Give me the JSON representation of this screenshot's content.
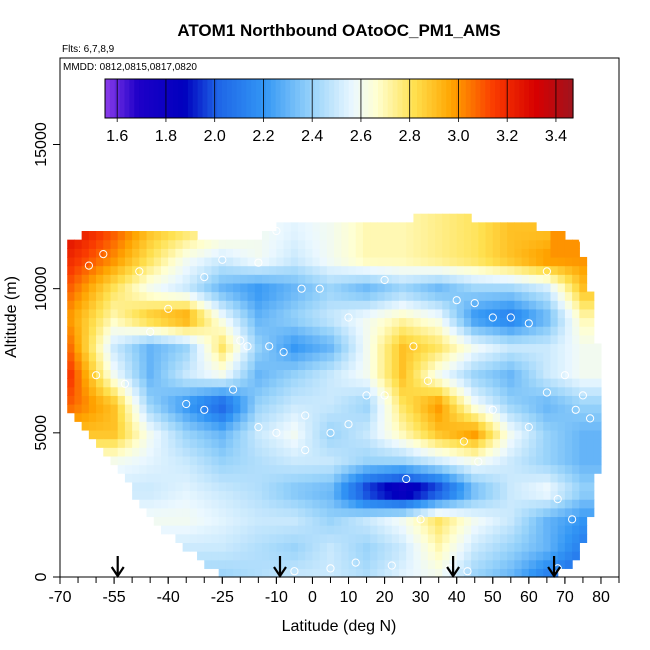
{
  "chart_data": {
    "type": "heatmap",
    "title": "ATOM1 Northbound OAtoOC_PM1_AMS",
    "subtitle": "Flts: 6,7,8,9",
    "annotation": "MMDD: 0812,0815,0817,0820",
    "xlabel": "Latitude (deg N)",
    "ylabel": "Altitude (m)",
    "xlim": [
      -70,
      85
    ],
    "ylim": [
      0,
      18000
    ],
    "x_ticks": [
      -70,
      -55,
      -40,
      -25,
      -10,
      0,
      10,
      20,
      30,
      40,
      50,
      60,
      70,
      80
    ],
    "x_tick_labels": [
      "-70",
      "-55",
      "-40",
      "-25",
      "-10",
      "0",
      "10",
      "20",
      "30",
      "40",
      "50",
      "60",
      "70",
      "80"
    ],
    "y_ticks": [
      0,
      5000,
      10000,
      15000
    ],
    "y_tick_labels": [
      "0",
      "5000",
      "10000",
      "15000"
    ],
    "colorbar": {
      "min": 1.55,
      "max": 3.47,
      "ticks": [
        1.6,
        1.8,
        2.0,
        2.2,
        2.4,
        2.6,
        2.8,
        3.0,
        3.2,
        3.4
      ],
      "tick_labels": [
        "1.6",
        "1.8",
        "2.0",
        "2.2",
        "2.4",
        "2.6",
        "2.8",
        "3.0",
        "3.2",
        "3.4"
      ],
      "placement": "top"
    },
    "value_field": {
      "lat": [
        -68,
        -55,
        -45,
        -35,
        -25,
        -15,
        -5,
        5,
        15,
        25,
        35,
        45,
        55,
        65,
        75
      ],
      "alt": [
        0,
        1000,
        2000,
        3000,
        4000,
        5000,
        6000,
        7000,
        8000,
        9000,
        10000,
        11000,
        12000
      ],
      "values": [
        [
          null,
          null,
          null,
          null,
          2.4,
          2.45,
          2.5,
          2.5,
          2.45,
          2.55,
          2.6,
          2.4,
          2.3,
          2.1,
          2.0
        ],
        [
          null,
          null,
          null,
          2.5,
          2.5,
          2.45,
          2.4,
          2.5,
          2.4,
          2.5,
          2.7,
          2.5,
          2.4,
          2.3,
          2.1
        ],
        [
          null,
          null,
          2.6,
          2.6,
          2.55,
          2.5,
          2.5,
          2.4,
          2.5,
          2.6,
          2.8,
          2.6,
          2.5,
          2.3,
          2.2
        ],
        [
          null,
          null,
          2.5,
          2.55,
          2.5,
          2.45,
          2.35,
          2.3,
          1.9,
          1.7,
          1.9,
          2.3,
          2.5,
          2.6,
          2.4
        ],
        [
          null,
          2.6,
          2.55,
          2.5,
          2.4,
          2.45,
          2.5,
          2.5,
          2.4,
          2.4,
          2.5,
          2.6,
          2.5,
          2.4,
          2.3
        ],
        [
          null,
          2.9,
          2.6,
          2.4,
          2.3,
          2.5,
          2.6,
          2.4,
          2.5,
          2.7,
          2.9,
          3.0,
          2.6,
          2.4,
          2.3
        ],
        [
          3.1,
          2.9,
          2.4,
          2.2,
          2.0,
          2.4,
          2.5,
          2.5,
          2.4,
          2.8,
          3.0,
          2.6,
          2.4,
          2.3,
          2.4
        ],
        [
          3.2,
          2.6,
          2.3,
          2.5,
          2.6,
          2.3,
          2.4,
          2.5,
          2.6,
          2.9,
          2.6,
          2.4,
          2.3,
          2.5,
          2.6
        ],
        [
          3.1,
          2.5,
          2.3,
          2.4,
          2.8,
          2.4,
          2.2,
          2.3,
          2.6,
          2.9,
          2.8,
          2.6,
          2.5,
          2.5,
          2.6
        ],
        [
          3.0,
          2.7,
          2.9,
          3.0,
          2.6,
          2.3,
          2.4,
          2.5,
          2.6,
          2.7,
          2.6,
          2.2,
          2.1,
          2.3,
          2.7
        ],
        [
          3.1,
          2.8,
          2.6,
          2.5,
          2.3,
          2.2,
          2.3,
          2.4,
          2.3,
          2.4,
          2.3,
          2.4,
          2.4,
          2.5,
          2.9
        ],
        [
          3.2,
          3.0,
          2.8,
          2.6,
          2.5,
          2.6,
          2.5,
          2.6,
          2.7,
          2.7,
          2.75,
          2.8,
          2.9,
          3.0,
          3.0
        ],
        [
          3.3,
          3.1,
          2.9,
          2.8,
          2.7,
          2.6,
          2.55,
          2.6,
          2.7,
          2.7,
          2.75,
          2.8,
          2.9,
          null,
          null
        ]
      ]
    },
    "data_extent": [
      {
        "lat": -68,
        "alt_min": 6000,
        "alt_max": 11500
      },
      {
        "lat": -62,
        "alt_min": 5000,
        "alt_max": 12000
      },
      {
        "lat": -55,
        "alt_min": 4000,
        "alt_max": 12000
      },
      {
        "lat": -45,
        "alt_min": 2000,
        "alt_max": 12000
      },
      {
        "lat": -35,
        "alt_min": 1000,
        "alt_max": 12000
      },
      {
        "lat": -25,
        "alt_min": 0,
        "alt_max": 11600
      },
      {
        "lat": -15,
        "alt_min": 0,
        "alt_max": 11800
      },
      {
        "lat": -5,
        "alt_min": 0,
        "alt_max": 12400
      },
      {
        "lat": 5,
        "alt_min": 0,
        "alt_max": 12400
      },
      {
        "lat": 15,
        "alt_min": 0,
        "alt_max": 12400
      },
      {
        "lat": 25,
        "alt_min": 0,
        "alt_max": 12300
      },
      {
        "lat": 35,
        "alt_min": 0,
        "alt_max": 12700
      },
      {
        "lat": 45,
        "alt_min": 0,
        "alt_max": 12400
      },
      {
        "lat": 55,
        "alt_min": 0,
        "alt_max": 12400
      },
      {
        "lat": 65,
        "alt_min": 0,
        "alt_max": 12000
      },
      {
        "lat": 72,
        "alt_min": 500,
        "alt_max": 11800
      },
      {
        "lat": 76,
        "alt_min": 1500,
        "alt_max": 11000
      },
      {
        "lat": 80,
        "alt_min": 4500,
        "alt_max": 7000
      }
    ],
    "sample_points": [
      {
        "lat": -58,
        "alt": 11200
      },
      {
        "lat": -62,
        "alt": 10800
      },
      {
        "lat": -48,
        "alt": 10600
      },
      {
        "lat": -30,
        "alt": 10400
      },
      {
        "lat": -25,
        "alt": 11000
      },
      {
        "lat": -15,
        "alt": 10900
      },
      {
        "lat": -10,
        "alt": 12000
      },
      {
        "lat": -3,
        "alt": 10000
      },
      {
        "lat": 2,
        "alt": 10000
      },
      {
        "lat": -40,
        "alt": 9300
      },
      {
        "lat": -45,
        "alt": 8500
      },
      {
        "lat": -20,
        "alt": 8200
      },
      {
        "lat": -18,
        "alt": 8000
      },
      {
        "lat": -12,
        "alt": 8000
      },
      {
        "lat": -8,
        "alt": 7800
      },
      {
        "lat": -60,
        "alt": 7000
      },
      {
        "lat": -52,
        "alt": 6700
      },
      {
        "lat": -35,
        "alt": 6000
      },
      {
        "lat": -30,
        "alt": 5800
      },
      {
        "lat": -22,
        "alt": 6500
      },
      {
        "lat": -15,
        "alt": 5200
      },
      {
        "lat": -10,
        "alt": 5000
      },
      {
        "lat": -2,
        "alt": 5600
      },
      {
        "lat": 5,
        "alt": 5000
      },
      {
        "lat": 10,
        "alt": 5300
      },
      {
        "lat": 15,
        "alt": 6300
      },
      {
        "lat": 20,
        "alt": 6300
      },
      {
        "lat": 28,
        "alt": 8000
      },
      {
        "lat": 32,
        "alt": 6800
      },
      {
        "lat": 40,
        "alt": 9600
      },
      {
        "lat": 45,
        "alt": 9500
      },
      {
        "lat": 50,
        "alt": 9000
      },
      {
        "lat": 55,
        "alt": 9000
      },
      {
        "lat": 60,
        "alt": 8800
      },
      {
        "lat": 70,
        "alt": 7000
      },
      {
        "lat": 75,
        "alt": 6300
      },
      {
        "lat": 50,
        "alt": 5800
      },
      {
        "lat": 60,
        "alt": 5200
      },
      {
        "lat": 65,
        "alt": 6400
      },
      {
        "lat": 73,
        "alt": 5800
      },
      {
        "lat": 77,
        "alt": 5500
      },
      {
        "lat": 42,
        "alt": 4700
      },
      {
        "lat": 46,
        "alt": 4000
      },
      {
        "lat": 26,
        "alt": 3400
      },
      {
        "lat": 30,
        "alt": 2000
      },
      {
        "lat": 68,
        "alt": 2700
      },
      {
        "lat": 72,
        "alt": 2000
      },
      {
        "lat": -2,
        "alt": 4400
      },
      {
        "lat": -5,
        "alt": 200
      },
      {
        "lat": 5,
        "alt": 300
      },
      {
        "lat": 12,
        "alt": 500
      },
      {
        "lat": 22,
        "alt": 400
      },
      {
        "lat": 38,
        "alt": 300
      },
      {
        "lat": 43,
        "alt": 200
      },
      {
        "lat": 68,
        "alt": 300
      },
      {
        "lat": 75,
        "alt": 11700
      },
      {
        "lat": 65,
        "alt": 10600
      },
      {
        "lat": 20,
        "alt": 10300
      },
      {
        "lat": 10,
        "alt": 9000
      }
    ],
    "flight_arrows_lat": [
      -54,
      -9,
      39,
      67
    ]
  }
}
